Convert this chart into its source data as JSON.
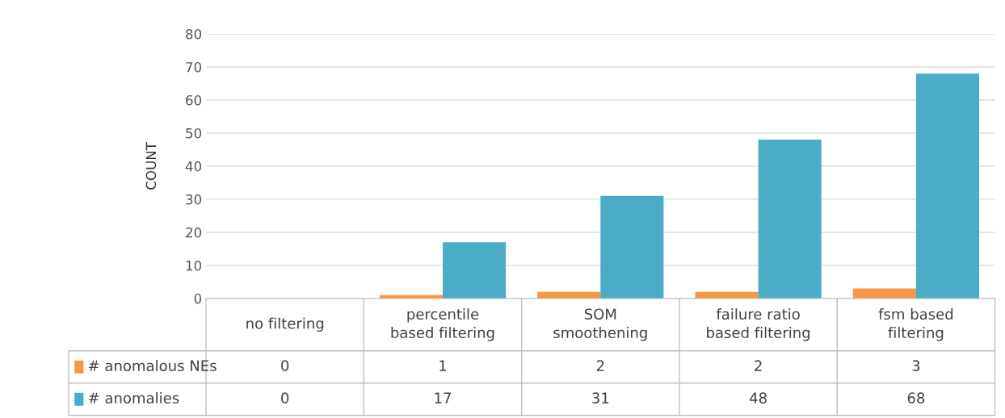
{
  "chart_data": {
    "type": "bar",
    "ylabel": "COUNT",
    "categories": [
      "no filtering",
      "percentile based filtering",
      "SOM smoothening",
      "failure ratio based filtering",
      "fsm based filtering"
    ],
    "series": [
      {
        "name": "# anomalous NEs",
        "color": "#f79646",
        "values": [
          0,
          1,
          2,
          2,
          3
        ]
      },
      {
        "name": "# anomalies",
        "color": "#4bacc6",
        "values": [
          0,
          17,
          31,
          48,
          68
        ]
      }
    ],
    "ylim": [
      0,
      80
    ],
    "yticks": [
      0,
      10,
      20,
      30,
      40,
      50,
      60,
      70,
      80
    ],
    "grid": "y",
    "legend": "bottom",
    "data_labels": true
  }
}
